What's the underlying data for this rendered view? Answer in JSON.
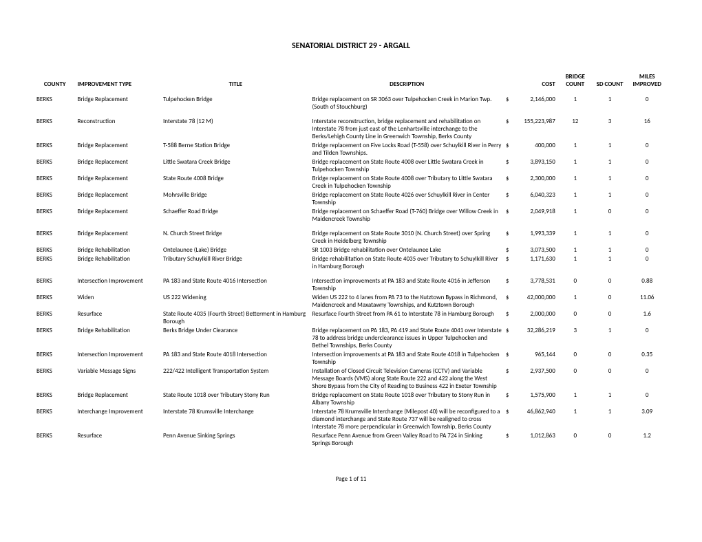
{
  "title": "SENATORIAL DISTRICT 29 - ARGALL",
  "columns": {
    "county": "COUNTY",
    "type": "IMPROVEMENT TYPE",
    "title": "TITLE",
    "desc": "DESCRIPTION",
    "cost": "COST",
    "bridge_count": "BRIDGE COUNT",
    "sd_count": "SD COUNT",
    "miles": "MILES IMPROVED"
  },
  "rows": [
    {
      "county": "BERKS",
      "type": "Bridge Replacement",
      "title": "Tulpehocken Bridge",
      "desc": "Bridge replacement on SR 3063 over Tulpehocken Creek in Marion Twp. (South of Stouchburg)",
      "cur": "$",
      "cost": "2,146,000",
      "bc": "1",
      "sc": "1",
      "mi": "0",
      "spacer_before": true
    },
    {
      "county": "BERKS",
      "type": "Reconstruction",
      "title": "Interstate 78 (12 M)",
      "desc": "Interstate reconstruction, bridge replacement and rehabilitation on Interstate 78 from just east of the Lenhartsville interchange to the Berks/Lehigh County Line in Greenwich Township, Berks County",
      "cur": "$",
      "cost": "155,223,987",
      "bc": "12",
      "sc": "3",
      "mi": "16",
      "spacer_before": true
    },
    {
      "county": "BERKS",
      "type": "Bridge Replacement",
      "title": "T-588 Berne Station Bridge",
      "desc": "Bridge replacement on Five Locks Road (T-558) over Schuylkill River in Perry and Tilden Townships.",
      "cur": "$",
      "cost": "400,000",
      "bc": "1",
      "sc": "1",
      "mi": "0"
    },
    {
      "county": "BERKS",
      "type": "Bridge Replacement",
      "title": "Little Swatara Creek Bridge",
      "desc": "Bridge replacement on State Route 4008 over Little Swatara Creek in Tulpehocken Township",
      "cur": "$",
      "cost": "3,893,150",
      "bc": "1",
      "sc": "1",
      "mi": "0"
    },
    {
      "county": "BERKS",
      "type": "Bridge Replacement",
      "title": "State Route 4008 Bridge",
      "desc": "Bridge replacement on State Route 4008 over Tributary to Little Swatara Creek in Tulpehocken Township",
      "cur": "$",
      "cost": "2,300,000",
      "bc": "1",
      "sc": "1",
      "mi": "0"
    },
    {
      "county": "BERKS",
      "type": "Bridge Replacement",
      "title": "Mohrsville Bridge",
      "desc": "Bridge replacement on State Route 4026 over Schuylkill River in Center Township",
      "cur": "$",
      "cost": "6,040,323",
      "bc": "1",
      "sc": "1",
      "mi": "0"
    },
    {
      "county": "BERKS",
      "type": "Bridge Replacement",
      "title": "Schaeffer Road Bridge",
      "desc": "Bridge replacement on Schaeffer Road (T-760) Bridge over Willow Creek in Maidencreek Township",
      "cur": "$",
      "cost": "2,049,918",
      "bc": "1",
      "sc": "0",
      "mi": "0"
    },
    {
      "county": "BERKS",
      "type": "Bridge Replacement",
      "title": "N. Church Street Bridge",
      "desc": "Bridge replacement on State Route 3010 (N. Church Street) over Spring Creek in Heidelberg Township",
      "cur": "$",
      "cost": "1,993,339",
      "bc": "1",
      "sc": "1",
      "mi": "0",
      "spacer_before": true
    },
    {
      "county": "BERKS",
      "type": "Bridge Rehabilitation",
      "title": "Ontelaunee (Lake) Bridge",
      "desc": "SR 1003 Bridge rehabilitation over Ontelaunee Lake",
      "cur": "$",
      "cost": "3,073,500",
      "bc": "1",
      "sc": "1",
      "mi": "0"
    },
    {
      "county": "BERKS",
      "type": "Bridge Rehabilitation",
      "title": "Tributary Schuylkill River Bridge",
      "desc": "Bridge rehabilitation on State Route 4035 over Tributary to Schuylkill River in Hamburg Borough",
      "cur": "$",
      "cost": "1,171,630",
      "bc": "1",
      "sc": "1",
      "mi": "0"
    },
    {
      "county": "BERKS",
      "type": "Intersection Improvement",
      "title": "PA 183 and State Route 4016 Intersection",
      "desc": "Intersection improvements at PA 183 and State Route 4016 in Jefferson Township",
      "cur": "$",
      "cost": "3,778,531",
      "bc": "0",
      "sc": "0",
      "mi": "0.88",
      "spacer_before": true
    },
    {
      "county": "BERKS",
      "type": "Widen",
      "title": "US 222 Widening",
      "desc": "Widen US 222 to 4 lanes from PA 73 to the Kutztown Bypass in Richmond, Maidencreek and Maxatawny Townships, and Kutztown Borough",
      "cur": "$",
      "cost": "42,000,000",
      "bc": "1",
      "sc": "0",
      "mi": "11.06"
    },
    {
      "county": "BERKS",
      "type": "Resurface",
      "title": "State Route  4035 (Fourth Street) Betterment in Hamburg Borough",
      "desc": "Resurface Fourth Street from PA 61 to Interstate 78 in Hamburg Borough",
      "cur": "$",
      "cost": "2,000,000",
      "bc": "0",
      "sc": "0",
      "mi": "1.6"
    },
    {
      "county": "BERKS",
      "type": "Bridge Rehabilitation",
      "title": "Berks Bridge Under Clearance",
      "desc": "Bridge replacement on PA 183, PA 419 and State Route 4041 over Interstate 78 to address bridge underclearance issues in Upper Tulpehocken and Bethel Townships, Berks County",
      "cur": "$",
      "cost": "32,286,219",
      "bc": "3",
      "sc": "1",
      "mi": "0"
    },
    {
      "county": "BERKS",
      "type": "Intersection Improvement",
      "title": "PA 183 and State Route 4018 Intersection",
      "desc": "Intersection improvements at PA 183 and State Route 4018 in Tulpehocken Township",
      "cur": "$",
      "cost": "965,144",
      "bc": "0",
      "sc": "0",
      "mi": "0.35"
    },
    {
      "county": "BERKS",
      "type": "Variable Message Signs",
      "title": "222/422 Intelligent Transportation System",
      "desc": "Installation of Closed Circuit Television Cameras (CCTV) and Variable Message Boards (VMS) along State Route 222 and 422 along the West Shore Bypass from the City of Reading to Business 422 in Exeter Township",
      "cur": "$",
      "cost": "2,937,500",
      "bc": "0",
      "sc": "0",
      "mi": "0"
    },
    {
      "county": "BERKS",
      "type": "Bridge Replacement",
      "title": "State Route 1018 over Tributary Stony Run",
      "desc": "Bridge replacement on State Route 1018 over Tributary to Stony Run in Albany Township",
      "cur": "$",
      "cost": "1,575,900",
      "bc": "1",
      "sc": "1",
      "mi": "0"
    },
    {
      "county": "BERKS",
      "type": "Interchange Improvement",
      "title": "Interstate 78 Krumsville Interchange",
      "desc": "Interstate 78 Krumsville Interchange (Milepost 40) will be reconfigured to a diamond interchange and State Route 737 will be realigned to cross Interstate 78 more perpendicular in Greenwich Township, Berks County",
      "cur": "$",
      "cost": "46,862,940",
      "bc": "1",
      "sc": "1",
      "mi": "3.09"
    },
    {
      "county": "BERKS",
      "type": "Resurface",
      "title": "Penn Avenue Sinking Springs",
      "desc": "Resurface Penn Avenue from Green Valley Road to PA 724 in Sinking Springs Borough",
      "cur": "$",
      "cost": "1,012,863",
      "bc": "0",
      "sc": "0",
      "mi": "1.2"
    }
  ],
  "footer": "Page 1 of 11"
}
